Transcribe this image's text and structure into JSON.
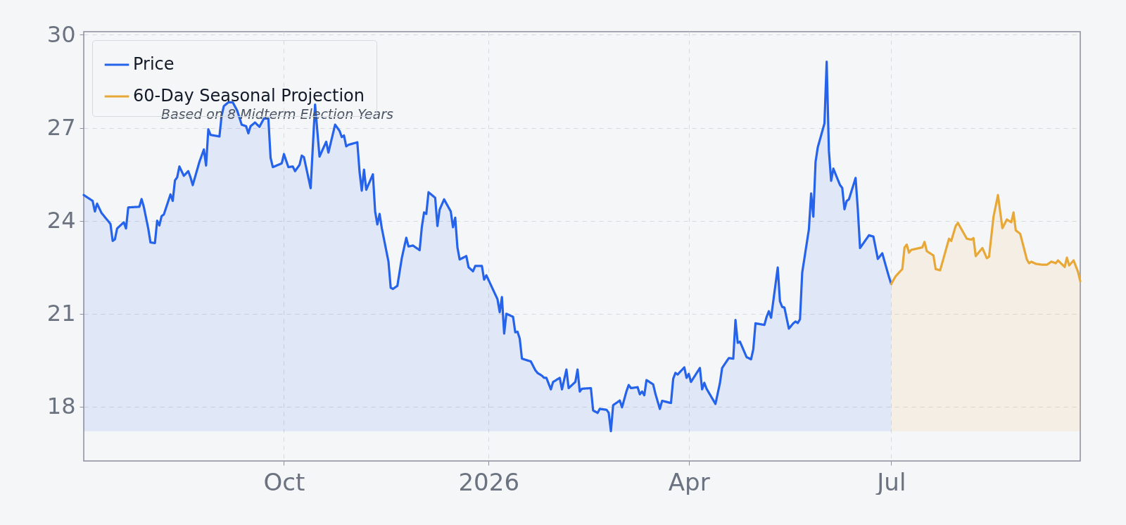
{
  "chart_data": {
    "type": "area",
    "annotations": [
      "Based on 8 Midterm Election Years"
    ],
    "series": [
      {
        "name": "Price",
        "color": "#2563eb",
        "x": [
          "2025-07-03",
          "2025-07-07",
          "2025-07-08",
          "2025-07-09",
          "2025-07-11",
          "2025-07-15",
          "2025-07-16",
          "2025-07-17",
          "2025-07-18",
          "2025-07-21",
          "2025-07-22",
          "2025-07-23",
          "2025-07-28",
          "2025-07-29",
          "2025-07-30",
          "2025-08-01",
          "2025-08-02",
          "2025-08-04",
          "2025-08-05",
          "2025-08-06",
          "2025-08-07",
          "2025-08-08",
          "2025-08-11",
          "2025-08-12",
          "2025-08-13",
          "2025-08-14",
          "2025-08-15",
          "2025-08-17",
          "2025-08-19",
          "2025-08-20",
          "2025-08-21",
          "2025-08-24",
          "2025-08-26",
          "2025-08-27",
          "2025-08-28",
          "2025-08-29",
          "2025-09-02",
          "2025-09-03",
          "2025-09-04",
          "2025-09-06",
          "2025-09-08",
          "2025-09-10",
          "2025-09-12",
          "2025-09-14",
          "2025-09-15",
          "2025-09-16",
          "2025-09-18",
          "2025-09-20",
          "2025-09-22",
          "2025-09-24",
          "2025-09-25",
          "2025-09-26",
          "2025-09-30",
          "2025-10-01",
          "2025-10-03",
          "2025-10-05",
          "2025-10-06",
          "2025-10-08",
          "2025-10-09",
          "2025-10-10",
          "2025-10-13",
          "2025-10-15",
          "2025-10-17",
          "2025-10-20",
          "2025-10-21",
          "2025-10-24",
          "2025-10-26",
          "2025-10-27",
          "2025-10-28",
          "2025-10-29",
          "2025-10-30",
          "2025-11-03",
          "2025-11-04",
          "2025-11-05",
          "2025-11-06",
          "2025-11-07",
          "2025-11-10",
          "2025-11-11",
          "2025-11-12",
          "2025-11-13",
          "2025-11-14",
          "2025-11-17",
          "2025-11-18",
          "2025-11-19",
          "2025-11-21",
          "2025-11-23",
          "2025-11-25",
          "2025-11-26",
          "2025-11-28",
          "2025-12-01",
          "2025-12-02",
          "2025-12-03",
          "2025-12-04",
          "2025-12-05",
          "2025-12-08",
          "2025-12-09",
          "2025-12-10",
          "2025-12-12",
          "2025-12-15",
          "2025-12-16",
          "2025-12-17",
          "2025-12-18",
          "2025-12-19",
          "2025-12-22",
          "2025-12-23",
          "2025-12-25",
          "2025-12-26",
          "2025-12-29",
          "2025-12-30",
          "2025-12-31",
          "2026-01-05",
          "2026-01-06",
          "2026-01-07",
          "2026-01-08",
          "2026-01-09",
          "2026-01-12",
          "2026-01-13",
          "2026-01-14",
          "2026-01-15",
          "2026-01-16",
          "2026-01-20",
          "2026-01-22",
          "2026-01-23",
          "2026-01-25",
          "2026-01-26",
          "2026-01-27",
          "2026-01-29",
          "2026-01-30",
          "2026-02-02",
          "2026-02-03",
          "2026-02-05",
          "2026-02-06",
          "2026-02-09",
          "2026-02-10",
          "2026-02-11",
          "2026-02-12",
          "2026-02-16",
          "2026-02-17",
          "2026-02-19",
          "2026-02-20",
          "2026-02-23",
          "2026-02-24",
          "2026-02-25",
          "2026-02-26",
          "2026-03-01",
          "2026-03-02",
          "2026-03-04",
          "2026-03-05",
          "2026-03-06",
          "2026-03-09",
          "2026-03-10",
          "2026-03-11",
          "2026-03-12",
          "2026-03-13",
          "2026-03-16",
          "2026-03-17",
          "2026-03-19",
          "2026-03-20",
          "2026-03-24",
          "2026-03-25",
          "2026-03-26",
          "2026-03-27",
          "2026-03-30",
          "2026-03-31",
          "2026-04-01",
          "2026-04-02",
          "2026-04-06",
          "2026-04-07",
          "2026-04-08",
          "2026-04-09",
          "2026-04-13",
          "2026-04-15",
          "2026-04-16",
          "2026-04-19",
          "2026-04-21",
          "2026-04-22",
          "2026-04-23",
          "2026-04-24",
          "2026-04-27",
          "2026-04-29",
          "2026-04-30",
          "2026-05-01",
          "2026-05-05",
          "2026-05-06",
          "2026-05-07",
          "2026-05-08",
          "2026-05-11",
          "2026-05-12",
          "2026-05-13",
          "2026-05-14",
          "2026-05-16",
          "2026-05-18",
          "2026-05-19",
          "2026-05-20",
          "2026-05-21",
          "2026-05-22",
          "2026-05-25",
          "2026-05-26",
          "2026-05-27",
          "2026-05-28",
          "2026-05-29",
          "2026-06-01",
          "2026-06-02",
          "2026-06-03",
          "2026-06-04",
          "2026-06-05",
          "2026-06-08",
          "2026-06-09",
          "2026-06-10",
          "2026-06-11",
          "2026-06-12",
          "2026-06-15",
          "2026-06-16",
          "2026-06-17",
          "2026-06-21",
          "2026-06-23",
          "2026-06-25",
          "2026-06-27",
          "2026-06-29",
          "2026-06-30",
          "2026-07-01"
        ],
        "values": [
          24.83,
          24.64,
          24.3,
          24.55,
          24.25,
          23.9,
          23.35,
          23.4,
          23.75,
          23.95,
          23.75,
          24.43,
          24.45,
          24.7,
          24.45,
          23.75,
          23.3,
          23.28,
          24.0,
          23.85,
          24.15,
          24.2,
          24.85,
          24.64,
          25.3,
          25.4,
          25.75,
          25.45,
          25.6,
          25.4,
          25.15,
          25.9,
          26.3,
          25.78,
          26.95,
          26.77,
          26.72,
          27.4,
          27.7,
          27.82,
          27.82,
          27.55,
          27.1,
          27.05,
          26.82,
          27.05,
          27.17,
          27.03,
          27.3,
          27.3,
          26.03,
          25.73,
          25.85,
          26.15,
          25.73,
          25.75,
          25.6,
          25.8,
          26.1,
          26.05,
          25.05,
          27.75,
          26.07,
          26.55,
          26.2,
          27.1,
          26.9,
          26.7,
          26.75,
          26.4,
          26.45,
          26.53,
          25.57,
          24.97,
          25.65,
          25.0,
          25.5,
          24.3,
          23.88,
          24.22,
          23.76,
          22.68,
          21.84,
          21.8,
          21.9,
          22.8,
          23.45,
          23.17,
          23.2,
          23.05,
          23.8,
          24.27,
          24.22,
          24.92,
          24.74,
          23.83,
          24.36,
          24.69,
          24.3,
          23.79,
          24.1,
          23.14,
          22.75,
          22.86,
          22.5,
          22.37,
          22.54,
          22.54,
          22.1,
          22.24,
          21.47,
          21.05,
          21.54,
          20.36,
          21.0,
          20.9,
          20.4,
          20.42,
          20.2,
          19.55,
          19.46,
          19.18,
          19.09,
          19.0,
          18.93,
          18.93,
          18.56,
          18.8,
          18.93,
          18.56,
          19.2,
          18.6,
          18.8,
          19.2,
          18.49,
          18.58,
          18.6,
          17.88,
          17.8,
          17.93,
          17.9,
          17.81,
          17.21,
          18.05,
          18.2,
          17.98,
          18.5,
          18.7,
          18.6,
          18.63,
          18.4,
          18.49,
          18.37,
          18.86,
          18.72,
          18.42,
          17.93,
          18.19,
          18.12,
          18.9,
          19.09,
          19.04,
          19.27,
          18.93,
          19.06,
          18.8,
          19.25,
          18.56,
          18.77,
          18.58,
          18.09,
          18.76,
          19.25,
          19.57,
          19.55,
          20.8,
          20.06,
          20.1,
          19.6,
          19.53,
          19.85,
          20.69,
          20.64,
          20.9,
          21.08,
          20.87,
          22.49,
          21.4,
          21.22,
          21.2,
          20.52,
          20.69,
          20.75,
          20.7,
          20.82,
          22.33,
          23.72,
          24.88,
          24.13,
          25.9,
          26.37,
          27.14,
          29.13,
          26.26,
          25.29,
          25.68,
          25.15,
          25.06,
          24.37,
          24.64,
          24.69,
          25.38,
          24.37,
          23.12,
          23.53,
          23.49,
          22.77,
          22.95,
          22.44,
          22.19,
          21.96
        ]
      },
      {
        "name": "60-Day Seasonal Projection",
        "color": "#e8a838",
        "x": [
          "2026-07-01",
          "2026-07-03",
          "2026-07-06",
          "2026-07-07",
          "2026-07-08",
          "2026-07-09",
          "2026-07-10",
          "2026-07-15",
          "2026-07-16",
          "2026-07-17",
          "2026-07-20",
          "2026-07-21",
          "2026-07-23",
          "2026-07-27",
          "2026-07-28",
          "2026-07-30",
          "2026-07-31",
          "2026-08-04",
          "2026-08-06",
          "2026-08-07",
          "2026-08-08",
          "2026-08-11",
          "2026-08-13",
          "2026-08-14",
          "2026-08-16",
          "2026-08-18",
          "2026-08-20",
          "2026-08-22",
          "2026-08-24",
          "2026-08-25",
          "2026-08-26",
          "2026-08-28",
          "2026-08-31",
          "2026-09-01",
          "2026-09-02",
          "2026-09-04",
          "2026-09-07",
          "2026-09-09",
          "2026-09-11",
          "2026-09-13",
          "2026-09-14",
          "2026-09-17",
          "2026-09-18",
          "2026-09-19",
          "2026-09-21",
          "2026-09-23",
          "2026-09-24"
        ],
        "values": [
          21.96,
          22.21,
          22.44,
          23.14,
          23.23,
          22.97,
          23.06,
          23.14,
          23.32,
          23.02,
          22.88,
          22.44,
          22.4,
          23.42,
          23.35,
          23.83,
          23.93,
          23.42,
          23.39,
          23.44,
          22.86,
          23.12,
          22.79,
          22.84,
          24.13,
          24.83,
          23.76,
          24.04,
          23.95,
          24.27,
          23.69,
          23.58,
          22.75,
          22.63,
          22.68,
          22.61,
          22.58,
          22.58,
          22.68,
          22.63,
          22.72,
          22.51,
          22.81,
          22.56,
          22.72,
          22.35,
          22.05
        ]
      }
    ],
    "xlim": [
      "2025-07-03",
      "2026-09-24"
    ],
    "xticks": [
      {
        "value": "2025-10-01",
        "label": "Oct"
      },
      {
        "value": "2026-01-01",
        "label": "2026"
      },
      {
        "value": "2026-04-01",
        "label": "Apr"
      },
      {
        "value": "2026-07-01",
        "label": "Jul"
      }
    ],
    "ylim": [
      16.25,
      30.1
    ],
    "yticks": [
      18,
      21,
      24,
      27,
      30
    ],
    "grid": true,
    "legend": "top left"
  }
}
